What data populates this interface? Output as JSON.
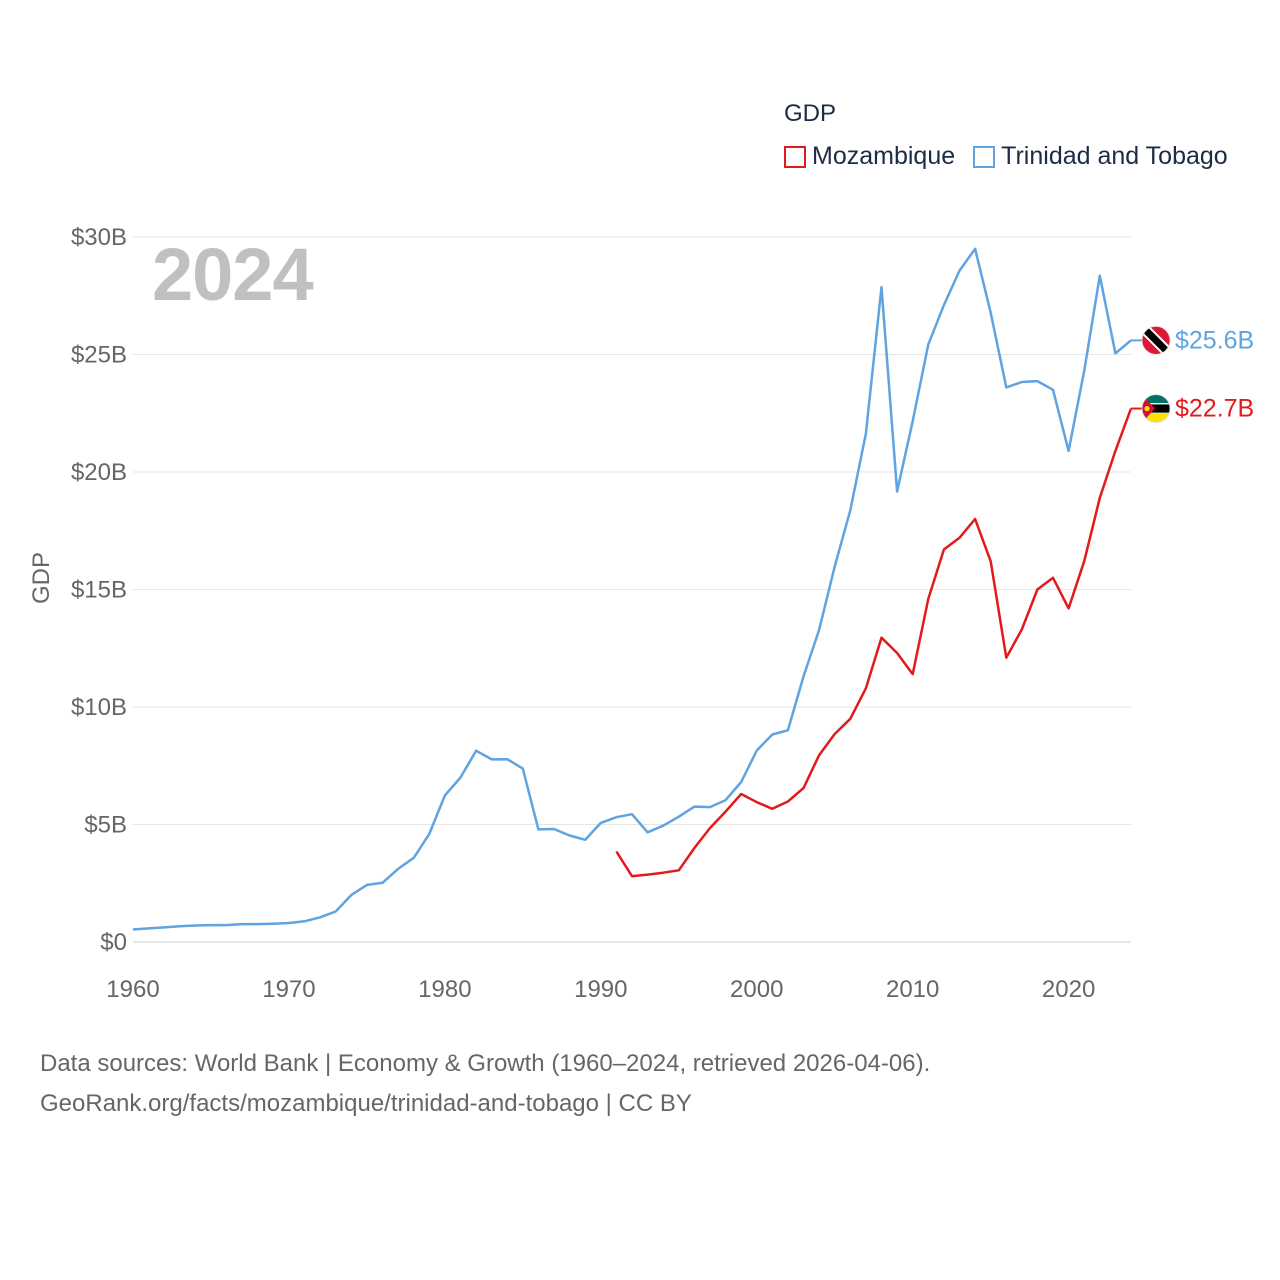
{
  "chart_data": {
    "type": "line",
    "legend_title": "GDP",
    "year_label": "2024",
    "ylabel": "GDP",
    "xlim": [
      1960,
      2024
    ],
    "ylim": [
      0,
      30000000000
    ],
    "x_ticks": [
      1960,
      1970,
      1980,
      1990,
      2000,
      2010,
      2020
    ],
    "x_tick_labels": [
      "1960",
      "1970",
      "1980",
      "1990",
      "2000",
      "2010",
      "2020"
    ],
    "y_ticks": [
      0,
      5000000000,
      10000000000,
      15000000000,
      20000000000,
      25000000000,
      30000000000
    ],
    "y_tick_labels": [
      "$0",
      "$5B",
      "$10B",
      "$15B",
      "$20B",
      "$25B",
      "$30B"
    ],
    "grid": true,
    "legend_position": "top-right",
    "series": [
      {
        "name": "Mozambique",
        "color": "#e31a1c",
        "end_label": "$22.7B",
        "flag": "mozambique-flag",
        "points": [
          [
            1991,
            3.85
          ],
          [
            1992,
            2.8
          ],
          [
            1993,
            2.87
          ],
          [
            1994,
            2.95
          ],
          [
            1995,
            3.05
          ],
          [
            1996,
            4.0
          ],
          [
            1997,
            4.85
          ],
          [
            1998,
            5.55
          ],
          [
            1999,
            6.3
          ],
          [
            2000,
            5.95
          ],
          [
            2001,
            5.67
          ],
          [
            2002,
            5.98
          ],
          [
            2003,
            6.55
          ],
          [
            2004,
            7.95
          ],
          [
            2005,
            8.85
          ],
          [
            2006,
            9.5
          ],
          [
            2007,
            10.8
          ],
          [
            2008,
            12.95
          ],
          [
            2009,
            12.3
          ],
          [
            2010,
            11.4
          ],
          [
            2011,
            14.6
          ],
          [
            2012,
            16.7
          ],
          [
            2013,
            17.2
          ],
          [
            2014,
            18.0
          ],
          [
            2015,
            16.2
          ],
          [
            2016,
            12.1
          ],
          [
            2017,
            13.3
          ],
          [
            2018,
            15.0
          ],
          [
            2019,
            15.5
          ],
          [
            2020,
            14.2
          ],
          [
            2021,
            16.2
          ],
          [
            2022,
            18.9
          ],
          [
            2023,
            20.9
          ],
          [
            2024,
            22.7
          ]
        ]
      },
      {
        "name": "Trinidad and Tobago",
        "color": "#5fa3e0",
        "end_label": "$25.6B",
        "flag": "trinidad-and-tobago-flag",
        "points": [
          [
            1960,
            0.53
          ],
          [
            1961,
            0.58
          ],
          [
            1962,
            0.62
          ],
          [
            1963,
            0.67
          ],
          [
            1964,
            0.7
          ],
          [
            1965,
            0.72
          ],
          [
            1966,
            0.72
          ],
          [
            1967,
            0.76
          ],
          [
            1968,
            0.76
          ],
          [
            1969,
            0.78
          ],
          [
            1970,
            0.81
          ],
          [
            1971,
            0.88
          ],
          [
            1972,
            1.05
          ],
          [
            1973,
            1.3
          ],
          [
            1974,
            2.0
          ],
          [
            1975,
            2.43
          ],
          [
            1976,
            2.52
          ],
          [
            1977,
            3.11
          ],
          [
            1978,
            3.58
          ],
          [
            1979,
            4.6
          ],
          [
            1980,
            6.24
          ],
          [
            1981,
            7.0
          ],
          [
            1982,
            8.14
          ],
          [
            1983,
            7.77
          ],
          [
            1984,
            7.78
          ],
          [
            1985,
            7.38
          ],
          [
            1986,
            4.79
          ],
          [
            1987,
            4.81
          ],
          [
            1988,
            4.53
          ],
          [
            1989,
            4.35
          ],
          [
            1990,
            5.07
          ],
          [
            1991,
            5.31
          ],
          [
            1992,
            5.44
          ],
          [
            1993,
            4.67
          ],
          [
            1994,
            4.95
          ],
          [
            1995,
            5.33
          ],
          [
            1996,
            5.76
          ],
          [
            1997,
            5.74
          ],
          [
            1998,
            6.04
          ],
          [
            1999,
            6.81
          ],
          [
            2000,
            8.15
          ],
          [
            2001,
            8.83
          ],
          [
            2002,
            9.01
          ],
          [
            2003,
            11.3
          ],
          [
            2004,
            13.28
          ],
          [
            2005,
            15.98
          ],
          [
            2006,
            18.37
          ],
          [
            2007,
            21.64
          ],
          [
            2008,
            27.87
          ],
          [
            2009,
            19.17
          ],
          [
            2010,
            22.16
          ],
          [
            2011,
            25.43
          ],
          [
            2012,
            27.1
          ],
          [
            2013,
            28.57
          ],
          [
            2014,
            29.5
          ],
          [
            2015,
            26.78
          ],
          [
            2016,
            23.6
          ],
          [
            2017,
            23.83
          ],
          [
            2018,
            23.87
          ],
          [
            2019,
            23.5
          ],
          [
            2020,
            20.9
          ],
          [
            2021,
            24.3
          ],
          [
            2022,
            28.35
          ],
          [
            2023,
            25.05
          ],
          [
            2024,
            25.6
          ]
        ]
      }
    ]
  },
  "footer": {
    "line1": "Data sources: World Bank | Economy & Growth (1960–2024, retrieved 2026-04-06).",
    "line2": "GeoRank.org/facts/mozambique/trinidad-and-tobago | CC BY"
  }
}
